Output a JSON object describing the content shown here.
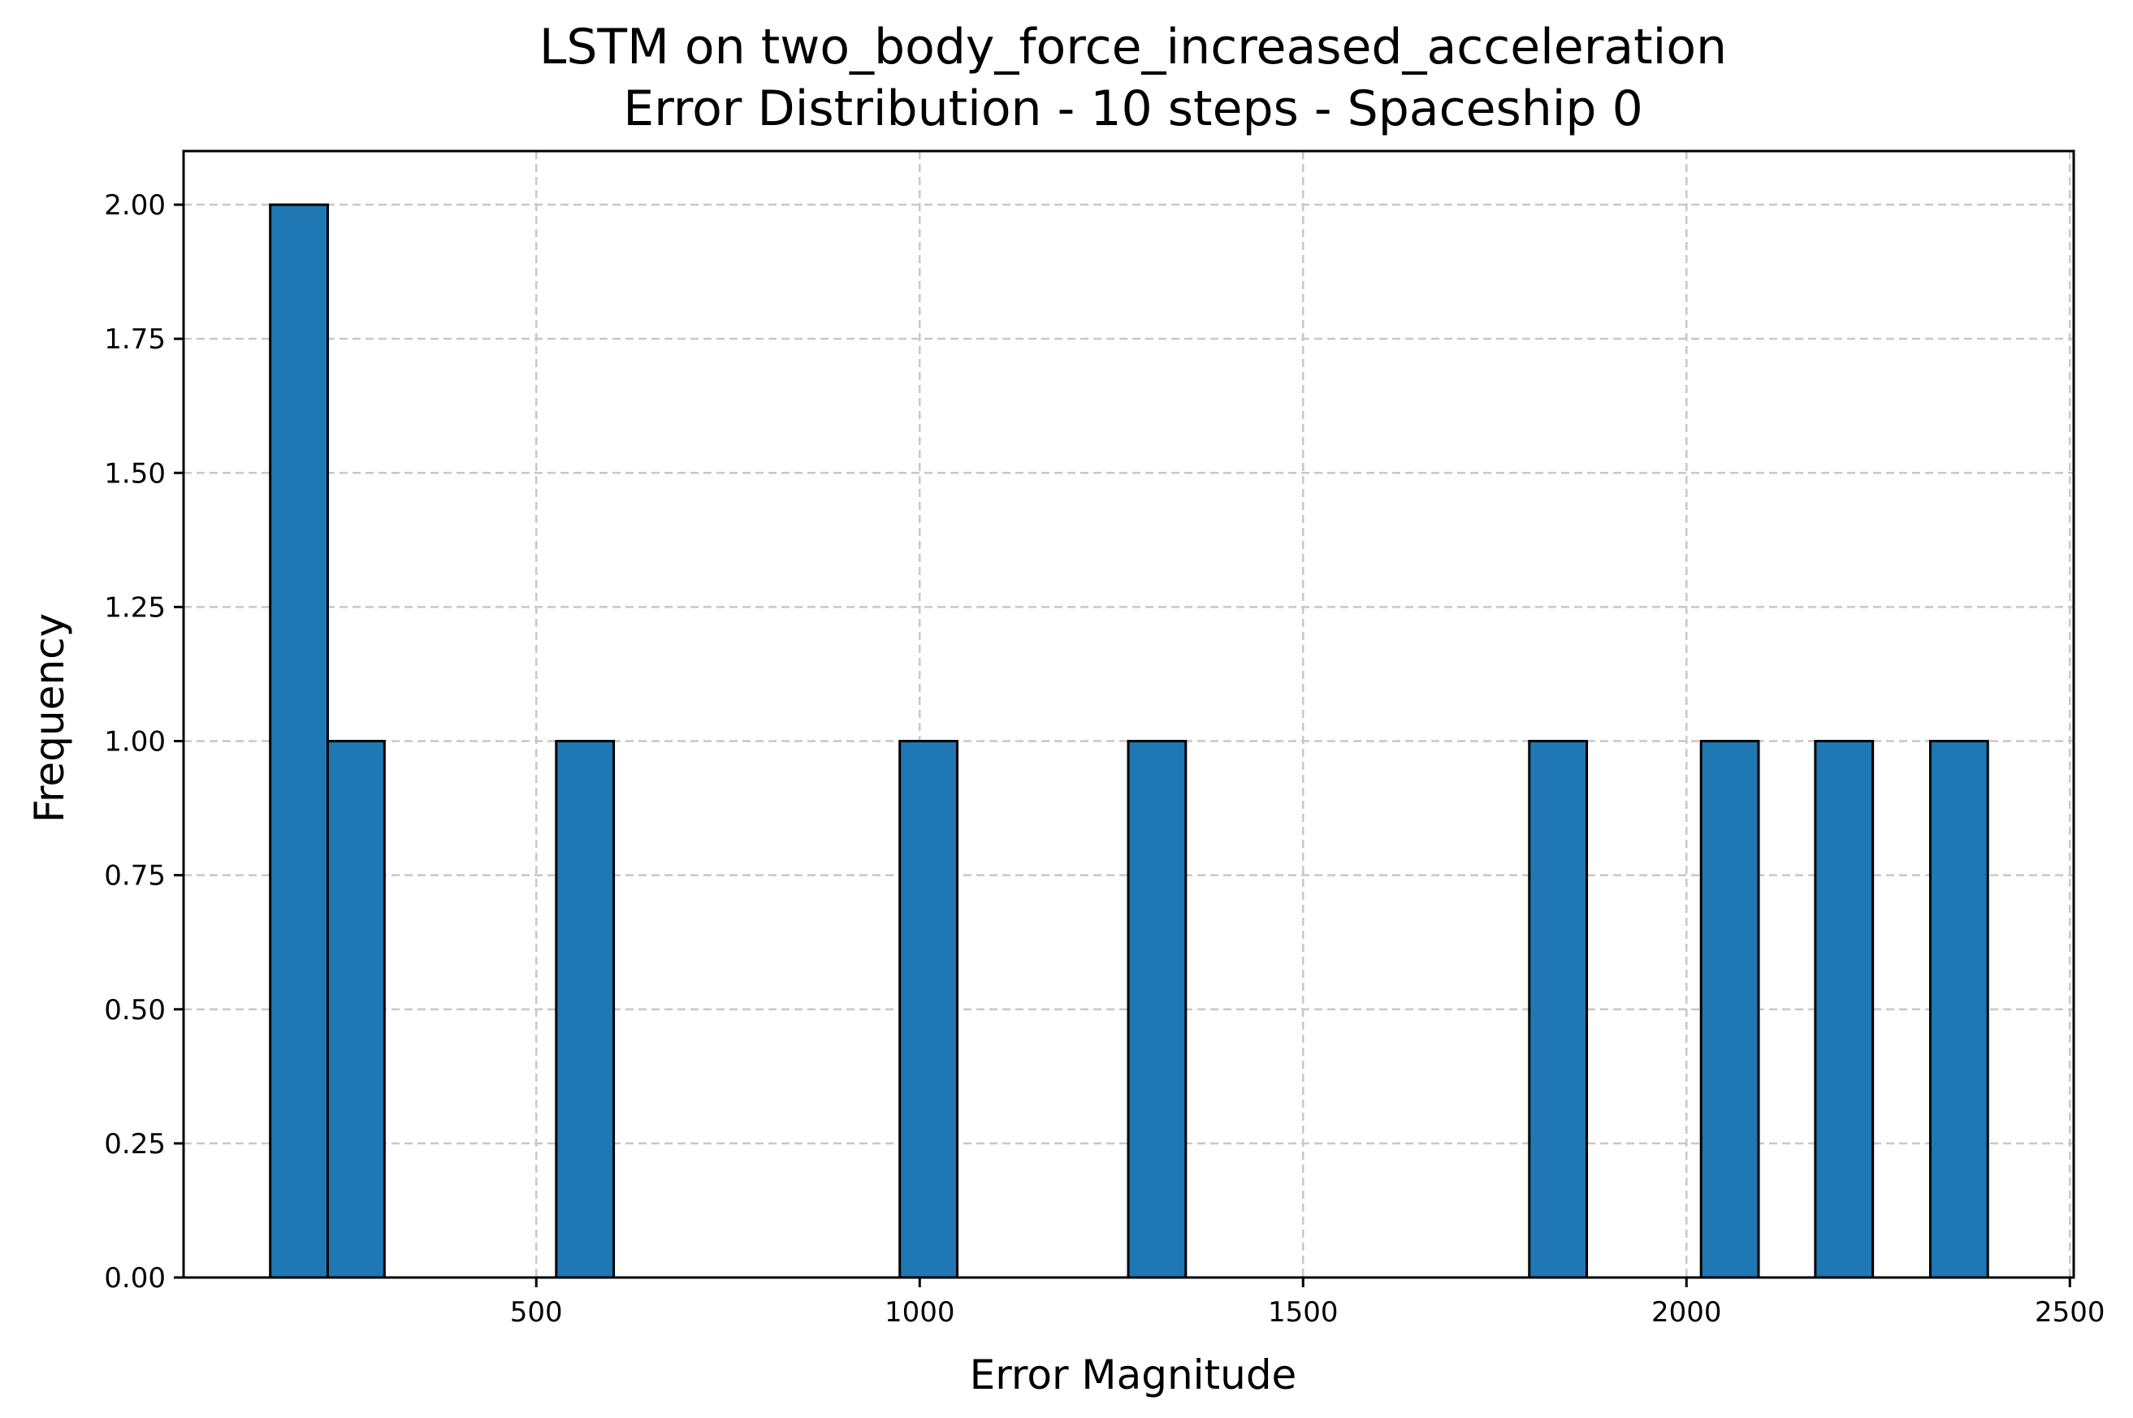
{
  "chart_data": {
    "type": "bar",
    "title": "LSTM on two_body_force_increased_acceleration",
    "subtitle": "Error Distribution - 10 steps - Spaceship 0",
    "xlabel": "Error Magnitude",
    "ylabel": "Frequency",
    "xlim": [
      40,
      2505
    ],
    "ylim": [
      0,
      2.1
    ],
    "xticks": [
      500,
      1000,
      1500,
      2000,
      2500
    ],
    "yticks": [
      0.0,
      0.25,
      0.5,
      0.75,
      1.0,
      1.25,
      1.5,
      1.75,
      2.0
    ],
    "xtick_labels": [
      "500",
      "1000",
      "1500",
      "2000",
      "2500"
    ],
    "ytick_labels": [
      "0.00",
      "0.25",
      "0.50",
      "0.75",
      "1.00",
      "1.25",
      "1.50",
      "1.75",
      "2.00"
    ],
    "grid": true,
    "colors": {
      "bar_fill": "#1f77b4",
      "bar_edge": "#000000",
      "grid": "#c8c8c8"
    },
    "bins": [
      {
        "x0": 153,
        "x1": 228,
        "count": 2
      },
      {
        "x0": 228,
        "x1": 302,
        "count": 1
      },
      {
        "x0": 526,
        "x1": 601,
        "count": 1
      },
      {
        "x0": 974,
        "x1": 1049,
        "count": 1
      },
      {
        "x0": 1272,
        "x1": 1347,
        "count": 1
      },
      {
        "x0": 1795,
        "x1": 1870,
        "count": 1
      },
      {
        "x0": 2019,
        "x1": 2094,
        "count": 1
      },
      {
        "x0": 2168,
        "x1": 2243,
        "count": 1
      },
      {
        "x0": 2318,
        "x1": 2393,
        "count": 1
      }
    ]
  }
}
